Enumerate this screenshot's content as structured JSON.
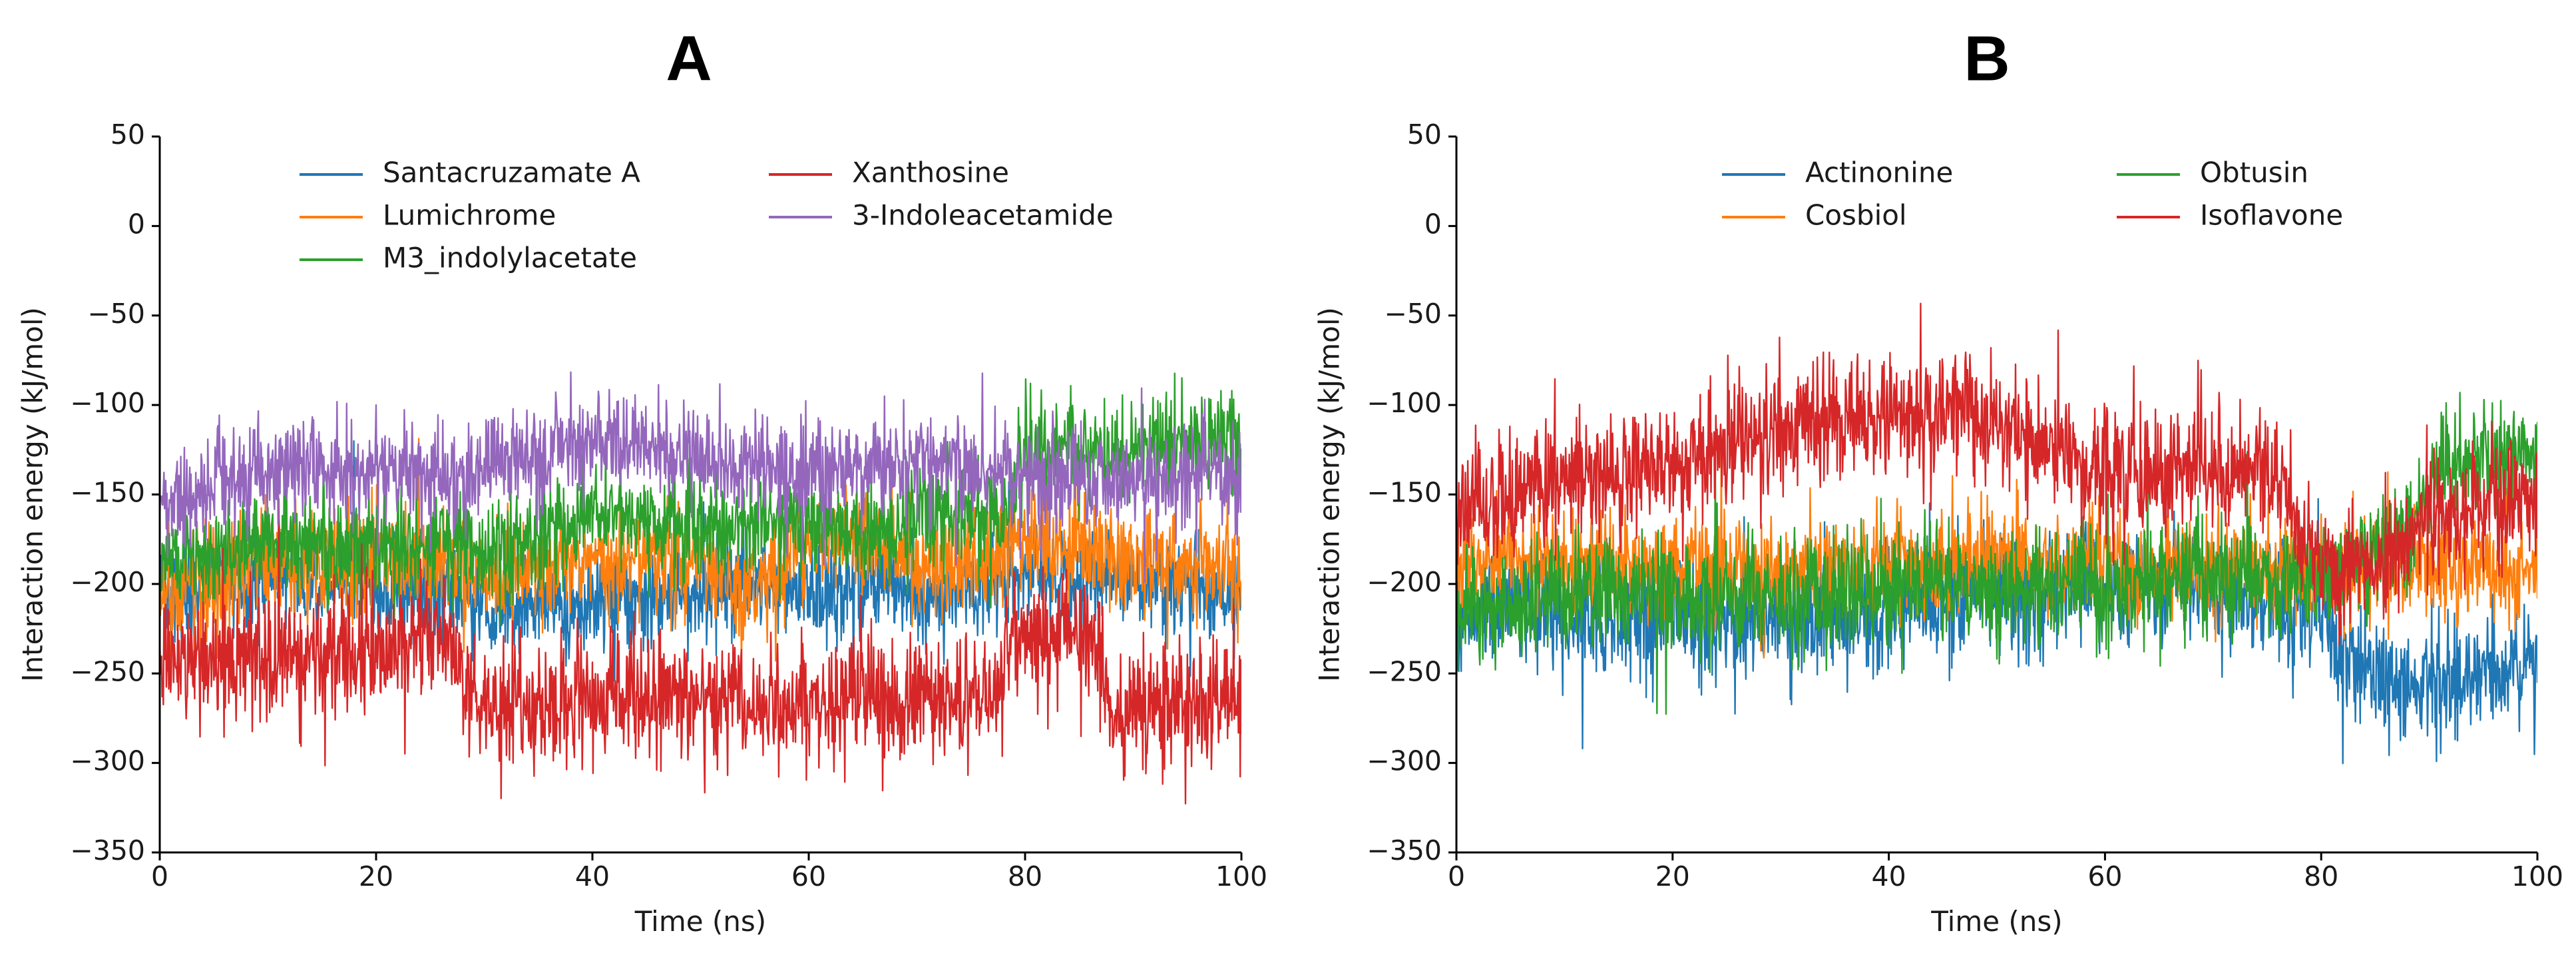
{
  "chart_data": [
    {
      "panel": "A",
      "type": "line",
      "title": "A",
      "xlabel": "Time (ns)",
      "ylabel": "Interaction energy (kJ/mol)",
      "xlim": [
        0,
        100
      ],
      "ylim": [
        -350,
        50
      ],
      "xticks": [
        0,
        20,
        40,
        60,
        80,
        100
      ],
      "yticks": [
        50,
        0,
        -50,
        -100,
        -150,
        -200,
        -250,
        -300,
        -350
      ],
      "xtick_labels": [
        "0",
        "20",
        "40",
        "60",
        "80",
        "100"
      ],
      "ytick_labels": [
        "50",
        "0",
        "−50",
        "−100",
        "−150",
        "−200",
        "−250",
        "−300",
        "−350"
      ],
      "legend_position": "top",
      "series": [
        {
          "name": "Santacruzamate A",
          "color": "#1f77b4",
          "noise": 14,
          "spikes": 30,
          "x": [
            0,
            5,
            10,
            20,
            28,
            30,
            40,
            50,
            55,
            60,
            65,
            70,
            80,
            90,
            100
          ],
          "y": [
            -205,
            -200,
            -195,
            -200,
            -205,
            -215,
            -210,
            -205,
            -200,
            -205,
            -200,
            -205,
            -195,
            -195,
            -205
          ]
        },
        {
          "name": "Lumichrome",
          "color": "#ff7f0e",
          "noise": 15,
          "spikes": 30,
          "x": [
            0,
            5,
            10,
            20,
            28,
            30,
            40,
            50,
            55,
            60,
            65,
            70,
            80,
            90,
            100
          ],
          "y": [
            -205,
            -200,
            -185,
            -185,
            -190,
            -195,
            -185,
            -190,
            -200,
            -175,
            -170,
            -190,
            -180,
            -185,
            -195
          ]
        },
        {
          "name": "M3_indolylacetate",
          "color": "#2ca02c",
          "noise": 14,
          "spikes": 28,
          "x": [
            0,
            5,
            10,
            20,
            28,
            30,
            40,
            50,
            60,
            65,
            70,
            78,
            80,
            90,
            100
          ],
          "y": [
            -190,
            -185,
            -175,
            -180,
            -175,
            -185,
            -160,
            -170,
            -165,
            -175,
            -160,
            -160,
            -125,
            -125,
            -115
          ]
        },
        {
          "name": "Xanthosine",
          "color": "#d62728",
          "noise": 17,
          "spikes": 35,
          "x": [
            0,
            5,
            10,
            20,
            27,
            28,
            30,
            40,
            50,
            60,
            70,
            77,
            78,
            80,
            86,
            88,
            95,
            100
          ],
          "y": [
            -245,
            -240,
            -240,
            -235,
            -230,
            -260,
            -270,
            -265,
            -265,
            -265,
            -265,
            -265,
            -235,
            -230,
            -225,
            -275,
            -265,
            -265
          ]
        },
        {
          "name": "3-Indoleacetamide",
          "color": "#9467bd",
          "noise": 14,
          "spikes": 30,
          "x": [
            0,
            5,
            10,
            20,
            28,
            30,
            40,
            50,
            60,
            70,
            80,
            90,
            100
          ],
          "y": [
            -155,
            -145,
            -135,
            -135,
            -145,
            -135,
            -120,
            -130,
            -140,
            -130,
            -140,
            -140,
            -140
          ]
        }
      ]
    },
    {
      "panel": "B",
      "type": "line",
      "title": "B",
      "xlabel": "Time (ns)",
      "ylabel": "Interaction energy (kJ/mol)",
      "xlim": [
        0,
        100
      ],
      "ylim": [
        -350,
        50
      ],
      "xticks": [
        0,
        20,
        40,
        60,
        80,
        100
      ],
      "yticks": [
        50,
        0,
        -50,
        -100,
        -150,
        -200,
        -250,
        -300,
        -350
      ],
      "xtick_labels": [
        "0",
        "20",
        "40",
        "60",
        "80",
        "100"
      ],
      "ytick_labels": [
        "50",
        "0",
        "−50",
        "−100",
        "−150",
        "−200",
        "−250",
        "−300",
        "−350"
      ],
      "legend_position": "top",
      "series": [
        {
          "name": "Actinonine",
          "color": "#1f77b4",
          "noise": 17,
          "spikes": 40,
          "x": [
            0,
            5,
            10,
            20,
            30,
            40,
            50,
            60,
            70,
            80,
            82,
            85,
            90,
            95,
            100
          ],
          "y": [
            -215,
            -210,
            -215,
            -215,
            -220,
            -215,
            -205,
            -200,
            -205,
            -215,
            -240,
            -255,
            -255,
            -250,
            -245
          ]
        },
        {
          "name": "Cosbiol",
          "color": "#ff7f0e",
          "noise": 14,
          "spikes": 28,
          "x": [
            0,
            5,
            10,
            20,
            30,
            40,
            50,
            60,
            70,
            80,
            90,
            100
          ],
          "y": [
            -190,
            -185,
            -190,
            -190,
            -195,
            -190,
            -185,
            -190,
            -190,
            -195,
            -190,
            -195
          ]
        },
        {
          "name": "Obtusin",
          "color": "#2ca02c",
          "noise": 16,
          "spikes": 38,
          "x": [
            0,
            5,
            10,
            20,
            30,
            40,
            50,
            60,
            70,
            80,
            88,
            90,
            95,
            100
          ],
          "y": [
            -215,
            -210,
            -205,
            -205,
            -205,
            -200,
            -200,
            -200,
            -195,
            -195,
            -175,
            -140,
            -125,
            -125
          ]
        },
        {
          "name": "Isoflavone",
          "color": "#d62728",
          "noise": 17,
          "spikes": 40,
          "x": [
            0,
            5,
            10,
            20,
            30,
            35,
            40,
            47,
            55,
            60,
            70,
            77,
            78,
            85,
            90,
            95,
            100
          ],
          "y": [
            -155,
            -150,
            -140,
            -135,
            -115,
            -110,
            -105,
            -105,
            -125,
            -135,
            -135,
            -140,
            -185,
            -190,
            -160,
            -155,
            -150
          ]
        }
      ]
    }
  ]
}
